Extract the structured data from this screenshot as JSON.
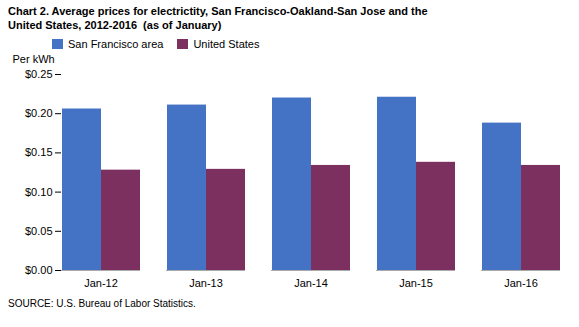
{
  "chart_data": {
    "type": "bar",
    "title": "Chart 2. Average prices for electrictity, San Francisco-Oakland-San Jose and the\nUnited States, 2012-2016  (as of January)",
    "ylabel": "Per kWh",
    "annotations": [
      "SOURCE: U.S. Bureau of Labor Statistics."
    ],
    "categories": [
      "Jan-12",
      "Jan-13",
      "Jan-14",
      "Jan-15",
      "Jan-16"
    ],
    "series": [
      {
        "name": "San Francisco area",
        "color": "#4472C4",
        "values": [
          0.206,
          0.211,
          0.22,
          0.221,
          0.188
        ]
      },
      {
        "name": "United States",
        "color": "#7B3060",
        "values": [
          0.128,
          0.129,
          0.134,
          0.138,
          0.134
        ]
      }
    ],
    "ylim": [
      0,
      0.25
    ],
    "yticks": [
      {
        "value": 0.0,
        "label": "$0.00"
      },
      {
        "value": 0.05,
        "label": "$0.05"
      },
      {
        "value": 0.1,
        "label": "$0.10"
      },
      {
        "value": 0.15,
        "label": "$0.15"
      },
      {
        "value": 0.2,
        "label": "$0.20"
      },
      {
        "value": 0.25,
        "label": "$0.25"
      }
    ],
    "legend": "upper left",
    "grid": false
  }
}
